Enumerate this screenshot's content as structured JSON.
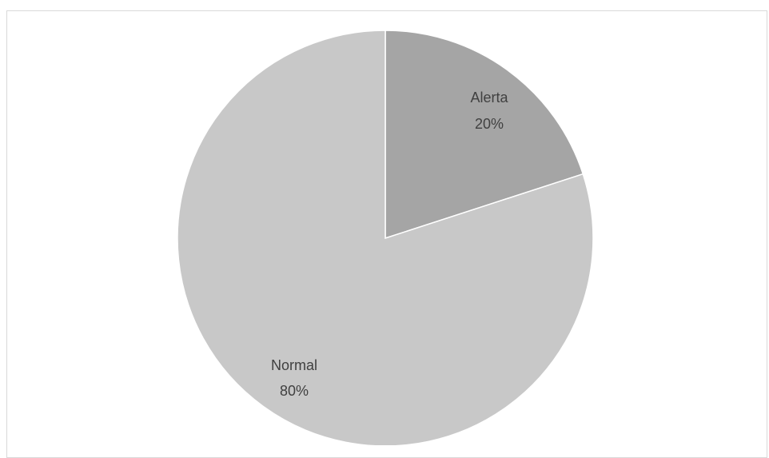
{
  "chart_data": {
    "type": "pie",
    "title": "",
    "slices": [
      {
        "label": "Alerta",
        "value": 20,
        "percent_label": "20%",
        "color": "#a5a5a5"
      },
      {
        "label": "Normal",
        "value": 80,
        "percent_label": "80%",
        "color": "#c8c8c8"
      }
    ],
    "legend": "none",
    "start_angle": "12 o'clock, clockwise"
  }
}
